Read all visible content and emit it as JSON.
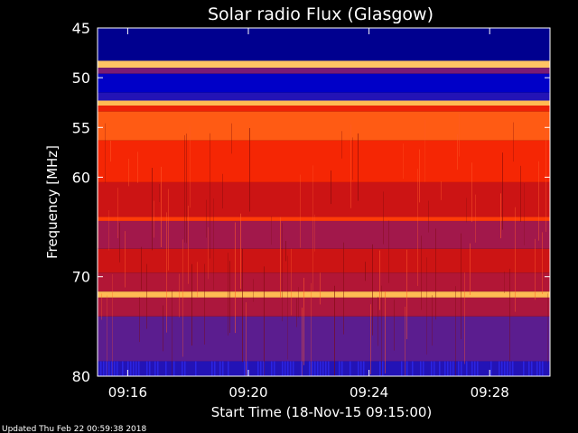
{
  "chart_data": {
    "type": "heatmap",
    "title": "Solar radio Flux (Glasgow)",
    "xlabel": "Start Time (18-Nov-15 09:15:00)",
    "ylabel": "Frequency [MHz]",
    "x_unit": "minutes after 09:00",
    "xlim": [
      15.0,
      30.0
    ],
    "ylim": [
      45,
      80
    ],
    "x_ticks": [
      {
        "value": 16,
        "label": "09:16"
      },
      {
        "value": 20,
        "label": "09:20"
      },
      {
        "value": 24,
        "label": "09:24"
      },
      {
        "value": 28,
        "label": "09:28"
      }
    ],
    "y_ticks": [
      {
        "value": 45,
        "label": "45"
      },
      {
        "value": 50,
        "label": "50"
      },
      {
        "value": 55,
        "label": "55"
      },
      {
        "value": 60,
        "label": "60"
      },
      {
        "value": 70,
        "label": "70"
      },
      {
        "value": 80,
        "label": "80"
      }
    ],
    "colormap": [
      "#000066",
      "#0000cc",
      "#3b1fa8",
      "#8a1a6a",
      "#cc1414",
      "#ff2a00",
      "#ff6a1a",
      "#ffb040",
      "#ffe8a0"
    ],
    "frequency_bands": [
      {
        "from": 45.0,
        "to": 48.3,
        "level": 0.05
      },
      {
        "from": 48.3,
        "to": 49.0,
        "level": 0.92
      },
      {
        "from": 49.0,
        "to": 49.6,
        "level": 0.35
      },
      {
        "from": 49.6,
        "to": 51.5,
        "level": 0.12
      },
      {
        "from": 51.5,
        "to": 52.3,
        "level": 0.2
      },
      {
        "from": 52.3,
        "to": 52.8,
        "level": 0.9
      },
      {
        "from": 52.8,
        "to": 53.4,
        "level": 0.58
      },
      {
        "from": 53.4,
        "to": 56.3,
        "level": 0.72
      },
      {
        "from": 56.3,
        "to": 60.5,
        "level": 0.6
      },
      {
        "from": 60.5,
        "to": 64.0,
        "level": 0.5
      },
      {
        "from": 64.0,
        "to": 64.4,
        "level": 0.66
      },
      {
        "from": 64.4,
        "to": 67.2,
        "level": 0.42
      },
      {
        "from": 67.2,
        "to": 69.6,
        "level": 0.5
      },
      {
        "from": 69.6,
        "to": 71.5,
        "level": 0.45
      },
      {
        "from": 71.5,
        "to": 72.1,
        "level": 0.9
      },
      {
        "from": 72.1,
        "to": 74.0,
        "level": 0.44
      },
      {
        "from": 74.0,
        "to": 78.5,
        "level": 0.3
      },
      {
        "from": 78.5,
        "to": 80.0,
        "level": 0.2
      }
    ]
  },
  "footer": {
    "updated_text": "Updated Thu Feb 22 00:59:38 2018"
  }
}
